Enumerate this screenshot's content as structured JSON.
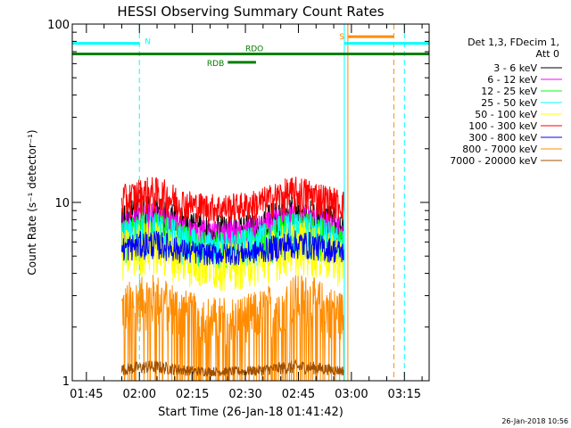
{
  "chart_data": {
    "type": "line",
    "title": "HESSI Observing Summary Count Rates",
    "xlabel": "Start Time (26-Jan-18 01:41:42)",
    "ylabel": "Count Rate (s⁻¹ detector⁻¹)",
    "yscale": "log",
    "ylim": [
      1,
      100
    ],
    "xlim": [
      "01:41",
      "03:22"
    ],
    "x_ticks": [
      "01:45",
      "02:00",
      "02:15",
      "02:30",
      "02:45",
      "03:00",
      "03:15"
    ],
    "y_ticks": [
      "1",
      "10",
      "100"
    ],
    "timestamp": "26-Jan-2018 10:56",
    "legend_title": [
      "Det 1,3, FDecim 1,",
      "Att 0"
    ],
    "legend_position": "right",
    "series": [
      {
        "name": "3 - 6 keV",
        "color": "#000000",
        "values_range": [
          4,
          11
        ]
      },
      {
        "name": "6 - 12 keV",
        "color": "#ff00ff",
        "values_range": [
          4,
          10
        ]
      },
      {
        "name": "12 - 25 keV",
        "color": "#00ff00",
        "values_range": [
          3,
          9
        ]
      },
      {
        "name": "25 - 50 keV",
        "color": "#00ffff",
        "values_range": [
          3,
          9
        ]
      },
      {
        "name": "50 - 100 keV",
        "color": "#ffff00",
        "values_range": [
          2,
          8
        ]
      },
      {
        "name": "100 - 300 keV",
        "color": "#ff0000",
        "values_range": [
          6,
          14
        ]
      },
      {
        "name": "300 - 800 keV",
        "color": "#0000ff",
        "values_range": [
          3.8,
          7
        ]
      },
      {
        "name": "800 - 7000 keV",
        "color": "#ff8c00",
        "values_range": [
          1,
          4
        ]
      },
      {
        "name": "7000 - 20000 keV",
        "color": "#a05000",
        "values_range": [
          1,
          1.3
        ]
      }
    ],
    "annotations": [
      {
        "label": "N",
        "color": "#00ffff",
        "start": "01:41",
        "end": "02:00",
        "level": 78
      },
      {
        "label": "S",
        "color": "#ff8c00",
        "start": "02:59",
        "end": "03:12",
        "level": 85
      },
      {
        "label": "",
        "color": "#00ffff",
        "start": "02:58",
        "end": "03:22",
        "level": 78
      },
      {
        "label": "RDO",
        "color": "#008000",
        "start": "01:41",
        "end": "03:22",
        "level": 68
      },
      {
        "label": "RDB",
        "color": "#008000",
        "start": "02:25",
        "end": "02:33",
        "level": 61
      }
    ],
    "vertical_lines": [
      {
        "time": "01:41",
        "color": "#00ffff",
        "style": "solid"
      },
      {
        "time": "02:00",
        "color": "#00ffff",
        "style": "dashed"
      },
      {
        "time": "02:58",
        "color": "#00ffff",
        "style": "solid"
      },
      {
        "time": "02:59",
        "color": "#ff8c00",
        "style": "solid"
      },
      {
        "time": "03:12",
        "color": "#ff8c00",
        "style": "dashed"
      },
      {
        "time": "03:15",
        "color": "#00ffff",
        "style": "dashed"
      }
    ],
    "data_window": [
      "01:55",
      "02:58"
    ]
  }
}
